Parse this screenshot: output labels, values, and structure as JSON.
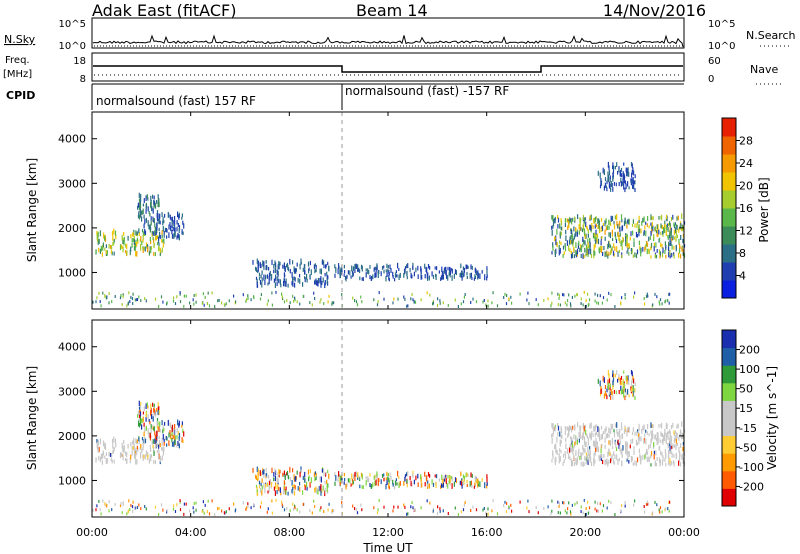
{
  "header": {
    "station": "Adak East (fitACF)",
    "beam": "Beam 14",
    "date": "14/Nov/2016"
  },
  "panels": {
    "nsky": {
      "left_label": "N.Sky",
      "left_ticks": [
        "10^5",
        "10^0"
      ],
      "right_label": "N.Search",
      "right_ticks": [
        "10^5",
        "10^0"
      ]
    },
    "freq": {
      "left_label_1": "Freq.",
      "left_label_2": "[MHz]",
      "left_ticks": [
        "18",
        "8"
      ],
      "right_label": "Nave",
      "right_ticks": [
        "60",
        "0"
      ]
    },
    "cpid": {
      "label": "CPID",
      "segments": [
        "normalsound (fast) 157 RF",
        "normalsound (fast) -157 RF"
      ]
    }
  },
  "colors": {
    "power_scale": [
      "#0b1fe0",
      "#1f3fb0",
      "#2b6f86",
      "#3c8c5a",
      "#5ab84a",
      "#a6cc2e",
      "#f0c400",
      "#f59a00",
      "#f06400",
      "#e62000"
    ],
    "velocity_scale": [
      "#e00000",
      "#ff5a00",
      "#ff9a00",
      "#ffcc33",
      "#c8c8c8",
      "#c8c8c8",
      "#7ed640",
      "#2f9a3a",
      "#1f5fa8",
      "#1a2fb0"
    ],
    "ground_gray": "#c8c8c8",
    "dashed": "#999999"
  },
  "chart_data": [
    {
      "type": "heatmap",
      "name": "power",
      "ylabel": "Slant Range [km]",
      "ylim": [
        180,
        4600
      ],
      "yticks": [
        "1000",
        "2000",
        "3000",
        "4000"
      ],
      "colorbar_label": "Power [dB]",
      "colorbar_ticks": [
        "28",
        "24",
        "20",
        "16",
        "12",
        "8",
        "4"
      ],
      "colorbar_range": [
        0,
        32
      ]
    },
    {
      "type": "heatmap",
      "name": "velocity",
      "ylabel": "Slant Range [km]",
      "ylim": [
        180,
        4600
      ],
      "yticks": [
        "1000",
        "2000",
        "3000",
        "4000"
      ],
      "colorbar_label": "Velocity [m s^-1]",
      "colorbar_ticks": [
        "200",
        "100",
        "50",
        "15",
        "-15",
        "-50",
        "-100",
        "-200"
      ]
    }
  ],
  "xaxis": {
    "label": "Time UT",
    "ticks": [
      "00:00",
      "04:00",
      "08:00",
      "12:00",
      "16:00",
      "20:00",
      "00:00"
    ],
    "xlim_hours": [
      0,
      24
    ],
    "mode_change_hour": 10.0
  },
  "echo_regions": [
    {
      "t0": 0.1,
      "t1": 2.9,
      "r0": 1350,
      "r1": 1850,
      "pmin": 8,
      "pmax": 24,
      "vmode": "ground"
    },
    {
      "t0": 1.8,
      "t1": 2.7,
      "r0": 1800,
      "r1": 2700,
      "pmin": 4,
      "pmax": 12,
      "vmode": "mixed"
    },
    {
      "t0": 2.6,
      "t1": 3.7,
      "r0": 1700,
      "r1": 2250,
      "pmin": 4,
      "pmax": 8,
      "vmode": "mixed"
    },
    {
      "t0": 6.5,
      "t1": 9.6,
      "r0": 650,
      "r1": 1200,
      "pmin": 4,
      "pmax": 8,
      "vmode": "mixed"
    },
    {
      "t0": 9.8,
      "t1": 16.0,
      "r0": 800,
      "r1": 1100,
      "pmin": 4,
      "pmax": 8,
      "vmode": "mixed"
    },
    {
      "t0": 18.6,
      "t1": 24.0,
      "r0": 1300,
      "r1": 2200,
      "pmin": 4,
      "pmax": 24,
      "vmode": "ground"
    },
    {
      "t0": 20.5,
      "t1": 22.0,
      "r0": 2800,
      "r1": 3400,
      "pmin": 4,
      "pmax": 8,
      "vmode": "mixed"
    },
    {
      "t0": 0.0,
      "t1": 24.0,
      "r0": 200,
      "r1": 520,
      "pmin": 4,
      "pmax": 20,
      "vmode": "mixed"
    }
  ]
}
